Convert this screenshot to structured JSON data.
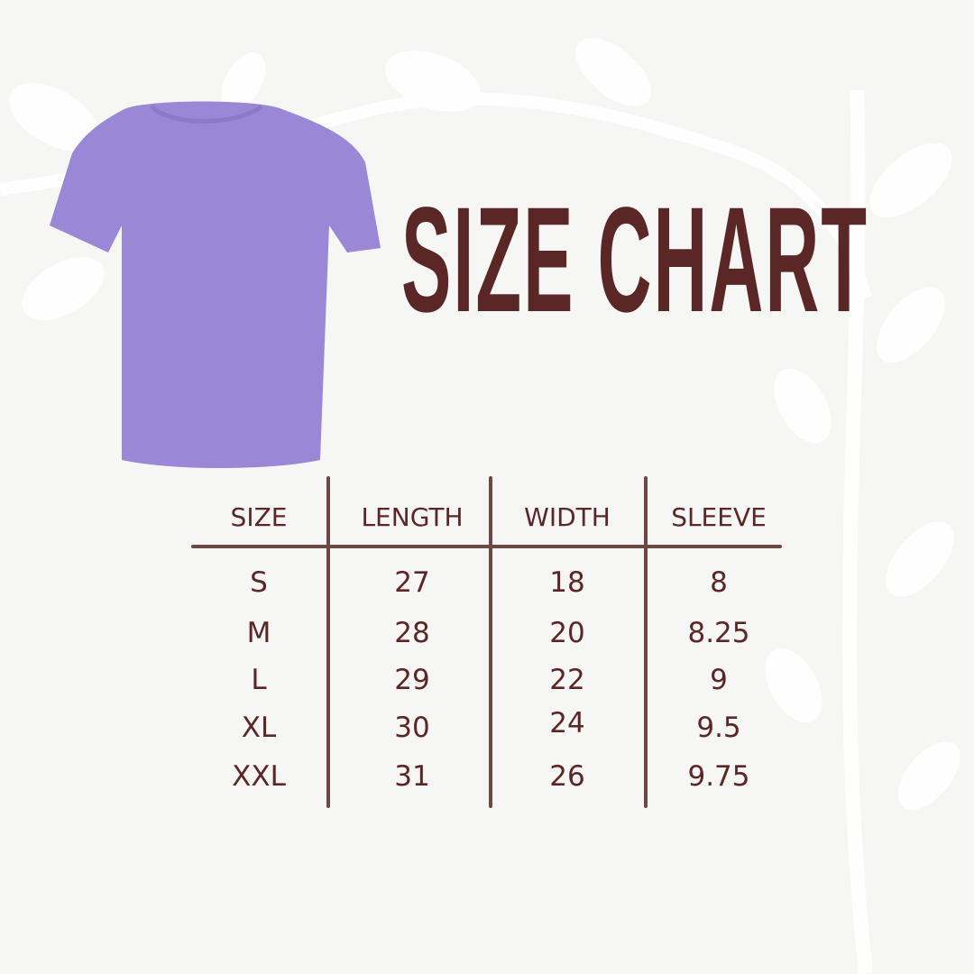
{
  "title": "SIZE CHART",
  "colors": {
    "text": "#5b2626",
    "lines": "#6b4745",
    "shirt": "#9a87d6",
    "background": "#f6f6f4"
  },
  "product_image": "purple-tshirt",
  "table": {
    "headers": [
      "SIZE",
      "LENGTH",
      "WIDTH",
      "SLEEVE"
    ],
    "rows": [
      [
        "S",
        "27",
        "18",
        "8"
      ],
      [
        "M",
        "28",
        "20",
        "8.25"
      ],
      [
        "L",
        "29",
        "22",
        "9"
      ],
      [
        "XL",
        "30",
        "24",
        "9.5"
      ],
      [
        "XXL",
        "31",
        "26",
        "9.75"
      ]
    ]
  }
}
